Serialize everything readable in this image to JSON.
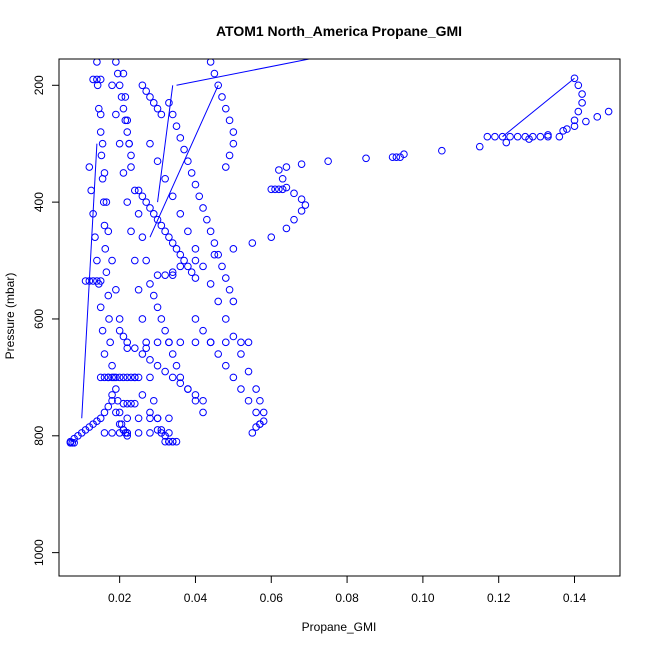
{
  "chart_data": {
    "type": "scatter",
    "title": "ATOM1 North_America Propane_GMI",
    "xlabel": "Propane_GMI",
    "ylabel": "Pressure (mbar)",
    "xlim": [
      0.004,
      0.152
    ],
    "ylim": [
      1040,
      155
    ],
    "y_reversed": true,
    "x_ticks": [
      0.02,
      0.04,
      0.06,
      0.08,
      0.1,
      0.12,
      0.14
    ],
    "x_tick_labels": [
      "0.02",
      "0.04",
      "0.06",
      "0.08",
      "0.10",
      "0.12",
      "0.14"
    ],
    "y_ticks": [
      200,
      400,
      600,
      800,
      1000
    ],
    "y_tick_labels": [
      "200",
      "400",
      "600",
      "800",
      "1000"
    ],
    "grid": false,
    "legend": "none",
    "marker": "open-circle",
    "color": "#0000ff",
    "series": [
      {
        "x": [
          0.014,
          0.0142,
          0.0145,
          0.015,
          0.0152,
          0.0155,
          0.0158,
          0.016,
          0.0162,
          0.0165,
          0.017,
          0.0172,
          0.0175,
          0.018,
          0.0185,
          0.019,
          0.0195,
          0.02,
          0.0205,
          0.021,
          0.0215,
          0.022
        ],
        "y": [
          160,
          200,
          240,
          280,
          320,
          360,
          400,
          440,
          480,
          520,
          560,
          600,
          640,
          680,
          700,
          720,
          740,
          760,
          780,
          790,
          795,
          800
        ]
      },
      {
        "x": [
          0.021,
          0.0215,
          0.022,
          0.0225,
          0.023,
          0.024,
          0.025,
          0.026,
          0.027,
          0.028,
          0.029,
          0.03,
          0.031,
          0.032,
          0.033,
          0.034,
          0.035,
          0.036,
          0.038,
          0.04,
          0.042
        ],
        "y": [
          180,
          220,
          260,
          300,
          340,
          380,
          420,
          460,
          500,
          540,
          560,
          580,
          600,
          620,
          640,
          660,
          680,
          700,
          720,
          740,
          760
        ]
      },
      {
        "x": [
          0.028,
          0.03,
          0.032,
          0.034,
          0.036,
          0.038,
          0.04,
          0.042,
          0.044,
          0.046,
          0.048,
          0.05,
          0.052,
          0.054,
          0.056,
          0.057,
          0.058,
          0.058,
          0.057,
          0.056,
          0.055
        ],
        "y": [
          300,
          330,
          360,
          390,
          420,
          450,
          480,
          510,
          540,
          570,
          600,
          630,
          660,
          690,
          720,
          740,
          760,
          775,
          780,
          785,
          795
        ]
      },
      {
        "x": [
          0.018,
          0.019,
          0.02,
          0.021,
          0.022,
          0.023,
          0.024,
          0.025,
          0.026,
          0.027,
          0.028,
          0.029,
          0.03,
          0.031,
          0.032,
          0.033
        ],
        "y": [
          200,
          250,
          300,
          350,
          400,
          450,
          500,
          550,
          600,
          650,
          700,
          740,
          770,
          790,
          800,
          810
        ]
      },
      {
        "x": [
          0.012,
          0.0125,
          0.013,
          0.0135,
          0.014,
          0.0145,
          0.015,
          0.0155,
          0.016,
          0.017,
          0.018,
          0.019,
          0.02,
          0.021,
          0.022
        ],
        "y": [
          340,
          380,
          420,
          460,
          500,
          540,
          580,
          620,
          660,
          700,
          730,
          760,
          780,
          790,
          795
        ]
      },
      {
        "x": [
          0.015,
          0.0155,
          0.016,
          0.0165,
          0.017,
          0.018,
          0.019,
          0.02,
          0.022,
          0.024,
          0.026,
          0.028,
          0.03,
          0.034
        ],
        "y": [
          250,
          300,
          350,
          400,
          450,
          500,
          550,
          600,
          650,
          700,
          730,
          760,
          790,
          810
        ]
      },
      {
        "x": [
          0.007,
          0.008,
          0.009,
          0.01,
          0.011,
          0.012,
          0.013,
          0.014,
          0.015,
          0.016,
          0.017,
          0.018
        ],
        "y": [
          810,
          805,
          800,
          795,
          790,
          785,
          780,
          775,
          770,
          760,
          750,
          740
        ]
      },
      {
        "x": [
          0.033,
          0.034,
          0.035,
          0.036,
          0.037,
          0.038,
          0.039,
          0.04,
          0.041,
          0.042,
          0.043,
          0.044,
          0.045,
          0.046,
          0.047,
          0.048,
          0.049,
          0.05
        ],
        "y": [
          230,
          250,
          270,
          290,
          310,
          330,
          350,
          370,
          390,
          410,
          430,
          450,
          470,
          490,
          510,
          530,
          550,
          570
        ]
      },
      {
        "x": [
          0.04,
          0.042,
          0.044,
          0.046,
          0.048,
          0.05,
          0.052,
          0.054,
          0.056,
          0.057
        ],
        "y": [
          600,
          620,
          640,
          660,
          680,
          700,
          720,
          740,
          760,
          780
        ]
      },
      {
        "x": [
          0.044,
          0.045,
          0.046,
          0.047,
          0.048,
          0.049,
          0.05,
          0.05,
          0.049,
          0.048
        ],
        "y": [
          160,
          180,
          200,
          220,
          240,
          260,
          280,
          300,
          320,
          340
        ]
      },
      {
        "x": [
          0.027,
          0.03,
          0.033,
          0.036,
          0.04,
          0.044,
          0.048,
          0.052,
          0.054
        ],
        "y": [
          640,
          640,
          640,
          640,
          640,
          640,
          640,
          640,
          640
        ]
      },
      {
        "x": [
          0.016,
          0.018,
          0.02,
          0.022,
          0.025,
          0.028,
          0.031,
          0.033
        ],
        "y": [
          795,
          795,
          795,
          795,
          795,
          795,
          795,
          795
        ]
      },
      {
        "x": [
          0.032,
          0.033,
          0.034,
          0.035
        ],
        "y": [
          810,
          810,
          810,
          810
        ]
      },
      {
        "x": [
          0.007,
          0.0075,
          0.008
        ],
        "y": [
          812,
          812,
          812
        ]
      },
      {
        "x": [
          0.011,
          0.012,
          0.013,
          0.014,
          0.015
        ],
        "y": [
          535,
          535,
          535,
          535,
          535
        ]
      },
      {
        "x": [
          0.015,
          0.016,
          0.017,
          0.018,
          0.019,
          0.02,
          0.021,
          0.022,
          0.023,
          0.024,
          0.025
        ],
        "y": [
          700,
          700,
          700,
          700,
          700,
          700,
          700,
          700,
          700,
          700,
          700
        ]
      },
      {
        "x": [
          0.022,
          0.025,
          0.028,
          0.03,
          0.033
        ],
        "y": [
          770,
          770,
          770,
          770,
          770
        ]
      },
      {
        "x": [
          0.021,
          0.022,
          0.023,
          0.024
        ],
        "y": [
          745,
          745,
          745,
          745
        ]
      },
      {
        "x": [
          0.013,
          0.014,
          0.015
        ],
        "y": [
          190,
          190,
          190
        ]
      },
      {
        "x": [
          0.03,
          0.032,
          0.034
        ],
        "y": [
          525,
          525,
          525
        ]
      },
      {
        "x": [
          0.06,
          0.061,
          0.062,
          0.063
        ],
        "y": [
          378,
          378,
          378,
          378
        ]
      },
      {
        "x": [
          0.117,
          0.119,
          0.121,
          0.123,
          0.125,
          0.127,
          0.129,
          0.131,
          0.133
        ],
        "y": [
          288,
          288,
          288,
          288,
          288,
          288,
          288,
          288,
          288
        ]
      },
      {
        "x": [
          0.092,
          0.093,
          0.094
        ],
        "y": [
          323,
          323,
          323
        ]
      },
      {
        "x": [
          0.034,
          0.036,
          0.04,
          0.045,
          0.05,
          0.055,
          0.06,
          0.064,
          0.066,
          0.068,
          0.069,
          0.068,
          0.066,
          0.064,
          0.063,
          0.062,
          0.064,
          0.068,
          0.075,
          0.085,
          0.095,
          0.105,
          0.115,
          0.122,
          0.128,
          0.133,
          0.137,
          0.14,
          0.143,
          0.146,
          0.149
        ],
        "y": [
          520,
          510,
          500,
          490,
          480,
          470,
          460,
          445,
          430,
          415,
          405,
          395,
          385,
          375,
          360,
          345,
          340,
          335,
          330,
          325,
          318,
          312,
          305,
          298,
          292,
          285,
          278,
          270,
          262,
          254,
          245
        ]
      },
      {
        "x": [
          0.14,
          0.141,
          0.142,
          0.142,
          0.141,
          0.14,
          0.138,
          0.136
        ],
        "y": [
          188,
          200,
          215,
          230,
          245,
          260,
          275,
          288
        ]
      },
      {
        "x": [
          0.025,
          0.026,
          0.027,
          0.028,
          0.029,
          0.03,
          0.031,
          0.032,
          0.033,
          0.034,
          0.035,
          0.036,
          0.037,
          0.038,
          0.039,
          0.04
        ],
        "y": [
          380,
          390,
          400,
          410,
          420,
          430,
          440,
          450,
          460,
          470,
          480,
          490,
          500,
          510,
          520,
          530
        ]
      },
      {
        "x": [
          0.02,
          0.021,
          0.022,
          0.024,
          0.026,
          0.028,
          0.03,
          0.032,
          0.034,
          0.036,
          0.038,
          0.04,
          0.042
        ],
        "y": [
          620,
          630,
          640,
          650,
          660,
          670,
          680,
          690,
          700,
          710,
          720,
          730,
          740
        ]
      },
      {
        "x": [
          0.019,
          0.0195,
          0.02,
          0.0205,
          0.021,
          0.0215,
          0.022,
          0.0225,
          0.023
        ],
        "y": [
          160,
          180,
          200,
          220,
          240,
          260,
          280,
          300,
          320
        ]
      },
      {
        "x": [
          0.026,
          0.027,
          0.028,
          0.029,
          0.03,
          0.031
        ],
        "y": [
          200,
          210,
          220,
          230,
          240,
          250
        ]
      }
    ],
    "connector_lines": [
      {
        "x": [
          0.028,
          0.046
        ],
        "y": [
          460,
          200
        ]
      },
      {
        "x": [
          0.035,
          0.07
        ],
        "y": [
          200,
          155
        ]
      },
      {
        "x": [
          0.121,
          0.14
        ],
        "y": [
          288,
          188
        ]
      },
      {
        "x": [
          0.03,
          0.034
        ],
        "y": [
          400,
          200
        ]
      },
      {
        "x": [
          0.01,
          0.014
        ],
        "y": [
          770,
          300
        ]
      }
    ]
  }
}
